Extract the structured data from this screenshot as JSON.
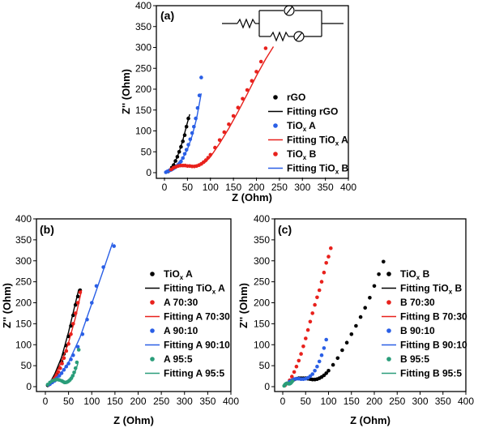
{
  "colors": {
    "black": "#000000",
    "red": "#e8211c",
    "blue": "#2a5fe6",
    "teal": "#2a9d7a"
  },
  "chart_data": [
    {
      "id": "a",
      "type": "scatter",
      "panel_label": "(a)",
      "xlabel": "Z (Ohm)",
      "ylabel": "Z'' (Ohm)",
      "xlim": [
        0,
        400
      ],
      "ylim": [
        0,
        400
      ],
      "xticks": [
        "0",
        "50",
        "100",
        "150",
        "200",
        "250",
        "300",
        "350",
        "400"
      ],
      "yticks": [
        "0",
        "50",
        "100",
        "150",
        "200",
        "250",
        "300",
        "350",
        "400"
      ],
      "legend_position": "right",
      "inset": "equivalent-circuit",
      "legend": [
        {
          "label": "rGO",
          "sub": "",
          "kind": "marker",
          "color": "#000000"
        },
        {
          "label": "Fitting  rGO",
          "sub": "",
          "kind": "line",
          "color": "#000000"
        },
        {
          "label": "TiO",
          "sub": "x",
          "tail": " A",
          "kind": "marker",
          "color": "#2a5fe6"
        },
        {
          "label": "Fitting  TiO",
          "sub": "x",
          "tail": " A",
          "kind": "line",
          "color": "#e8211c"
        },
        {
          "label": "TiO",
          "sub": "x",
          "tail": " B",
          "kind": "marker",
          "color": "#e8211c"
        },
        {
          "label": "Fitting  TiO",
          "sub": "x",
          "tail": " B",
          "kind": "line",
          "color": "#2a5fe6"
        }
      ],
      "series": [
        {
          "kind": "scatter",
          "color": "#000000",
          "x": [
            8,
            12,
            16,
            20,
            24,
            28,
            32,
            36,
            40,
            44,
            48,
            52
          ],
          "y": [
            3,
            6,
            12,
            18,
            28,
            38,
            50,
            62,
            75,
            90,
            110,
            130
          ]
        },
        {
          "kind": "line",
          "color": "#000000",
          "x": [
            8,
            16,
            24,
            32,
            40,
            48,
            55
          ],
          "y": [
            3,
            12,
            28,
            50,
            78,
            112,
            140
          ]
        },
        {
          "kind": "scatter",
          "color": "#2a5fe6",
          "x": [
            3,
            6,
            9,
            12,
            15,
            18,
            21,
            24,
            27,
            30,
            33,
            36,
            40,
            44,
            48,
            52,
            56,
            60,
            64,
            68,
            72,
            76,
            80
          ],
          "y": [
            1,
            3,
            4,
            6,
            7,
            9,
            11,
            13,
            16,
            19,
            23,
            27,
            35,
            45,
            55,
            67,
            80,
            95,
            110,
            130,
            155,
            185,
            228
          ]
        },
        {
          "kind": "line",
          "color": "#2a5fe6",
          "x": [
            2,
            10,
            20,
            30,
            40,
            50,
            60,
            70,
            80
          ],
          "y": [
            0,
            4,
            10,
            20,
            35,
            56,
            88,
            130,
            190
          ]
        },
        {
          "kind": "scatter",
          "color": "#e8211c",
          "x": [
            15,
            20,
            25,
            30,
            35,
            40,
            45,
            50,
            55,
            60,
            65,
            70,
            75,
            80,
            85,
            90,
            95,
            100,
            110,
            120,
            130,
            140,
            150,
            160,
            170,
            180,
            190,
            200,
            210,
            220
          ],
          "y": [
            8,
            12,
            14,
            16,
            17,
            17,
            17,
            16,
            16,
            15,
            15,
            16,
            18,
            21,
            25,
            30,
            36,
            43,
            60,
            78,
            97,
            116,
            136,
            156,
            177,
            198,
            220,
            242,
            266,
            298
          ]
        },
        {
          "kind": "line",
          "color": "#e8211c",
          "x": [
            10,
            20,
            30,
            40,
            50,
            60,
            70,
            80,
            90,
            100,
            120,
            140,
            160,
            180,
            200,
            220,
            237
          ],
          "y": [
            5,
            10,
            14,
            16,
            16,
            15,
            15,
            19,
            26,
            38,
            70,
            106,
            146,
            188,
            232,
            272,
            302
          ]
        }
      ]
    },
    {
      "id": "b",
      "type": "scatter",
      "panel_label": "(b)",
      "xlabel": "Z (Ohm)",
      "ylabel": "Z'' (Ohm)",
      "xlim": [
        0,
        400
      ],
      "ylim": [
        0,
        400
      ],
      "xticks": [
        "0",
        "50",
        "100",
        "150",
        "200",
        "250",
        "300",
        "350",
        "400"
      ],
      "yticks": [
        "0",
        "50",
        "100",
        "150",
        "200",
        "250",
        "300",
        "350",
        "400"
      ],
      "legend_position": "right",
      "legend": [
        {
          "label": "TiO",
          "sub": "x",
          "tail": " A",
          "kind": "marker",
          "color": "#000000"
        },
        {
          "label": "Fitting  TiO",
          "sub": "x",
          "tail": " A",
          "kind": "line",
          "color": "#000000"
        },
        {
          "label": "A 70:30",
          "sub": "",
          "kind": "marker",
          "color": "#e8211c"
        },
        {
          "label": "Fitting  A 70:30",
          "sub": "",
          "kind": "line",
          "color": "#e8211c"
        },
        {
          "label": "A 90:10",
          "sub": "",
          "kind": "marker",
          "color": "#2a5fe6"
        },
        {
          "label": "Fitting  A 90:10",
          "sub": "",
          "kind": "line",
          "color": "#2a5fe6"
        },
        {
          "label": "A 95:5",
          "sub": "",
          "kind": "marker",
          "color": "#2a9d7a"
        },
        {
          "label": "Fitting  A 95:5",
          "sub": "",
          "kind": "line",
          "color": "#2a9d7a"
        }
      ],
      "series": [
        {
          "kind": "scatter",
          "color": "#000000",
          "x": [
            5,
            10,
            15,
            20,
            25,
            30,
            35,
            40,
            45,
            50,
            55,
            60,
            65,
            70,
            75
          ],
          "y": [
            3,
            8,
            14,
            22,
            32,
            45,
            60,
            78,
            98,
            120,
            145,
            170,
            195,
            215,
            230
          ]
        },
        {
          "kind": "line",
          "color": "#000000",
          "x": [
            5,
            20,
            35,
            50,
            65,
            72
          ],
          "y": [
            0,
            30,
            70,
            130,
            200,
            232
          ]
        },
        {
          "kind": "scatter",
          "color": "#e8211c",
          "x": [
            8,
            12,
            16,
            20,
            24,
            28,
            32,
            36,
            40,
            45,
            50,
            55,
            60,
            65,
            70,
            75
          ],
          "y": [
            5,
            10,
            15,
            20,
            27,
            35,
            44,
            55,
            68,
            85,
            102,
            125,
            150,
            175,
            200,
            225
          ]
        },
        {
          "kind": "line",
          "color": "#e8211c",
          "x": [
            5,
            20,
            35,
            50,
            65,
            78
          ],
          "y": [
            0,
            25,
            60,
            105,
            165,
            230
          ]
        },
        {
          "kind": "scatter",
          "color": "#2a5fe6",
          "x": [
            10,
            15,
            20,
            25,
            30,
            35,
            40,
            45,
            50,
            55,
            60,
            70,
            80,
            90,
            100,
            110,
            125,
            148
          ],
          "y": [
            6,
            10,
            14,
            20,
            26,
            32,
            40,
            48,
            55,
            65,
            75,
            95,
            125,
            160,
            200,
            240,
            285,
            335
          ]
        },
        {
          "kind": "line",
          "color": "#2a5fe6",
          "x": [
            5,
            25,
            50,
            75,
            100,
            125,
            145
          ],
          "y": [
            0,
            18,
            58,
            118,
            198,
            278,
            343
          ]
        },
        {
          "kind": "scatter",
          "color": "#2a9d7a",
          "x": [
            5,
            10,
            15,
            20,
            25,
            30,
            35,
            38,
            41,
            44,
            47,
            50,
            53,
            56,
            59,
            62,
            65,
            68,
            72
          ],
          "y": [
            5,
            10,
            14,
            16,
            17,
            16,
            14,
            12,
            10,
            10,
            11,
            13,
            16,
            20,
            26,
            34,
            44,
            58,
            88
          ]
        },
        {
          "kind": "line",
          "color": "#2a9d7a",
          "x": [
            3,
            10,
            18,
            26,
            34,
            40,
            46,
            52,
            58,
            64,
            70
          ],
          "y": [
            3,
            10,
            15,
            17,
            15,
            11,
            10,
            13,
            20,
            34,
            55
          ]
        }
      ]
    },
    {
      "id": "c",
      "type": "scatter",
      "panel_label": "(c)",
      "xlabel": "Z (Ohm)",
      "ylabel": "Z'' (Ohm)",
      "xlim": [
        0,
        400
      ],
      "ylim": [
        0,
        400
      ],
      "xticks": [
        "0",
        "50",
        "100",
        "150",
        "200",
        "250",
        "300",
        "350",
        "400"
      ],
      "yticks": [
        "0",
        "50",
        "100",
        "150",
        "200",
        "250",
        "300",
        "350",
        "400"
      ],
      "legend_position": "right",
      "legend": [
        {
          "label": "TiO",
          "sub": "x",
          "tail": " B",
          "kind": "marker",
          "color": "#000000"
        },
        {
          "label": "Fitting  TiO",
          "sub": "x",
          "tail": " B",
          "kind": "line",
          "color": "#000000"
        },
        {
          "label": "B 70:30",
          "sub": "",
          "kind": "marker",
          "color": "#e8211c"
        },
        {
          "label": "Fitting  B 70:30",
          "sub": "",
          "kind": "line",
          "color": "#e8211c"
        },
        {
          "label": "B 90:10",
          "sub": "",
          "kind": "marker",
          "color": "#2a5fe6"
        },
        {
          "label": "Fitting  B 90:10",
          "sub": "",
          "kind": "line",
          "color": "#2a5fe6"
        },
        {
          "label": "B 95:5",
          "sub": "",
          "kind": "marker",
          "color": "#2a9d7a"
        },
        {
          "label": "Fitting  B 95:5",
          "sub": "",
          "kind": "line",
          "color": "#2a9d7a"
        }
      ],
      "series": [
        {
          "kind": "scatter",
          "color": "#000000",
          "x": [
            15,
            20,
            25,
            30,
            35,
            40,
            45,
            50,
            55,
            60,
            65,
            70,
            75,
            80,
            85,
            90,
            95,
            100,
            110,
            120,
            130,
            140,
            150,
            160,
            170,
            180,
            190,
            200,
            210,
            220
          ],
          "y": [
            10,
            14,
            17,
            19,
            20,
            20,
            20,
            20,
            19,
            18,
            17,
            17,
            18,
            20,
            23,
            27,
            32,
            38,
            52,
            68,
            87,
            105,
            125,
            145,
            166,
            188,
            212,
            240,
            268,
            298
          ]
        },
        {
          "kind": "scatter",
          "color": "#e8211c",
          "x": [
            5,
            10,
            15,
            20,
            25,
            30,
            35,
            40,
            45,
            50,
            55,
            60,
            65,
            70,
            75,
            80,
            85,
            90,
            95,
            100,
            105
          ],
          "y": [
            3,
            8,
            15,
            24,
            35,
            48,
            62,
            78,
            96,
            115,
            135,
            155,
            175,
            195,
            213,
            230,
            250,
            272,
            295,
            310,
            330
          ]
        },
        {
          "kind": "scatter",
          "color": "#2a5fe6",
          "x": [
            10,
            15,
            20,
            25,
            30,
            35,
            40,
            45,
            50,
            55,
            60,
            65,
            70,
            75,
            80,
            85,
            90,
            95
          ],
          "y": [
            8,
            12,
            15,
            18,
            19,
            19,
            18,
            18,
            19,
            21,
            25,
            30,
            38,
            48,
            60,
            75,
            92,
            112
          ]
        },
        {
          "kind": "scatter",
          "color": "#2a9d7a",
          "x": [
            3,
            5,
            7,
            9,
            11,
            13,
            15,
            17,
            19,
            21
          ],
          "y": [
            2,
            5,
            7,
            8,
            8,
            7,
            7,
            8,
            10,
            13
          ]
        }
      ]
    }
  ]
}
